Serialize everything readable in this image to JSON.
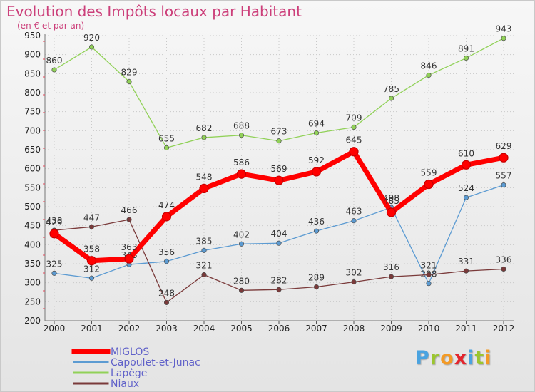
{
  "title": "Evolution des Impôts locaux par Habitant",
  "subtitle": "(en € et par an)",
  "logo": {
    "text": "Proxiti",
    "colors": [
      "#4aa3e0",
      "#9bc62e",
      "#f39a25",
      "#e3252d",
      "#4aa3e0",
      "#9bc62e",
      "#f39a25"
    ]
  },
  "chart_data": {
    "type": "line",
    "title": "Evolution des Impôts locaux par Habitant",
    "subtitle": "(en € et par an)",
    "x": [
      "2000",
      "2001",
      "2002",
      "2003",
      "2004",
      "2005",
      "2006",
      "2007",
      "2008",
      "2009",
      "2010",
      "2011",
      "2012"
    ],
    "ylim": [
      200,
      950
    ],
    "yticks": [
      200,
      250,
      300,
      350,
      400,
      450,
      500,
      550,
      600,
      650,
      700,
      750,
      800,
      850,
      900,
      950
    ],
    "grid": true,
    "legend": "bottom-left",
    "series": [
      {
        "name": "MIGLOS",
        "color": "#ff0000",
        "values": [
          429,
          358,
          363,
          474,
          548,
          586,
          569,
          592,
          645,
          485,
          559,
          610,
          629
        ],
        "labels": [
          "429",
          "358",
          "363",
          "474",
          "548",
          "586",
          "569",
          "592",
          "645",
          "485",
          "559",
          "610",
          "629"
        ]
      },
      {
        "name": "Capoulet-et-Junac",
        "color": "#5c9bd2",
        "values": [
          325,
          312,
          348,
          356,
          385,
          402,
          404,
          436,
          463,
          498,
          298,
          524,
          557
        ],
        "labels": [
          "325",
          "312",
          "348",
          "356",
          "385",
          "402",
          "404",
          "436",
          "463",
          "498",
          "298",
          "524",
          "557"
        ]
      },
      {
        "name": "Lapège",
        "color": "#91d158",
        "values": [
          860,
          920,
          829,
          655,
          682,
          688,
          673,
          694,
          709,
          785,
          846,
          891,
          943
        ],
        "labels": [
          "860",
          "920",
          "829",
          "655",
          "682",
          "688",
          "673",
          "694",
          "709",
          "785",
          "846",
          "891",
          "943"
        ]
      },
      {
        "name": "Niaux",
        "color": "#7a3a3a",
        "values": [
          438,
          447,
          466,
          248,
          321,
          280,
          282,
          289,
          302,
          316,
          321,
          331,
          336
        ],
        "labels": [
          "438",
          "447",
          "466",
          "248",
          "321",
          "280",
          "282",
          "289",
          "302",
          "316",
          "321",
          "331",
          "336"
        ]
      }
    ]
  }
}
